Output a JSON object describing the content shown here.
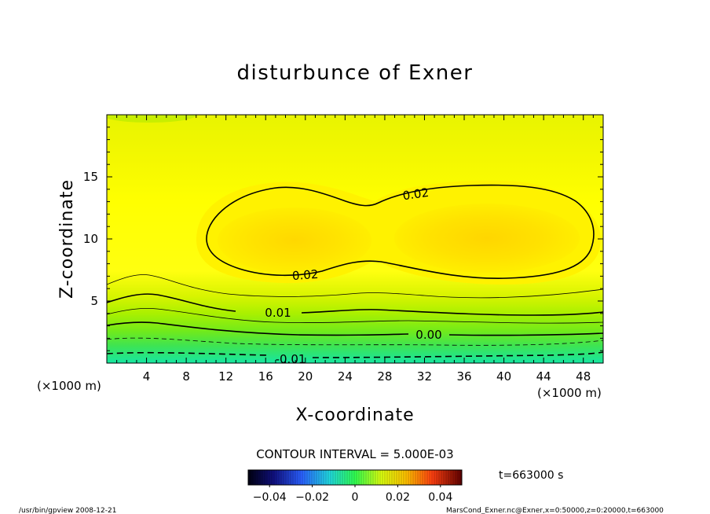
{
  "chart_data": {
    "type": "contour",
    "title": "disturbunce of Exner",
    "xlabel": "X-coordinate",
    "ylabel": "Z-coordinate",
    "x_unit": "(×1000 m)",
    "y_unit": "(×1000 m)",
    "xlim": [
      0,
      50
    ],
    "ylim": [
      0,
      20
    ],
    "xticks": [
      "4",
      "8",
      "12",
      "16",
      "20",
      "24",
      "28",
      "32",
      "36",
      "40",
      "44",
      "48"
    ],
    "yticks": [
      "5",
      "10",
      "15"
    ],
    "contour_labels": [
      "0.02",
      "0.02",
      "0.01",
      "0.00",
      "-0.01"
    ],
    "contour_levels": [
      -0.01,
      -0.005,
      0.0,
      0.005,
      0.01,
      0.015,
      0.02
    ],
    "contour_interval_text": "CONTOUR INTERVAL = 5.000E-03",
    "colorbar": {
      "range": [
        -0.05,
        0.05
      ],
      "tick_labels": [
        "−0.04",
        "−0.02",
        "0",
        "0.02",
        "0.04"
      ],
      "tick_values": [
        -0.04,
        -0.02,
        0,
        0.02,
        0.04
      ]
    },
    "time_label": "t=663000 s",
    "footer_left": "/usr/bin/gpview   2008-12-21",
    "footer_right": "MarsCond_Exner.nc@Exner,x=0:50000,z=0:20000,t=663000",
    "colors": {
      "band_low": "#1ee8a0",
      "band_mid": "#46e646",
      "band_green_yellow": "#aaf000",
      "band_yellow": "#ffff00",
      "band_gold": "#ffd000"
    }
  }
}
